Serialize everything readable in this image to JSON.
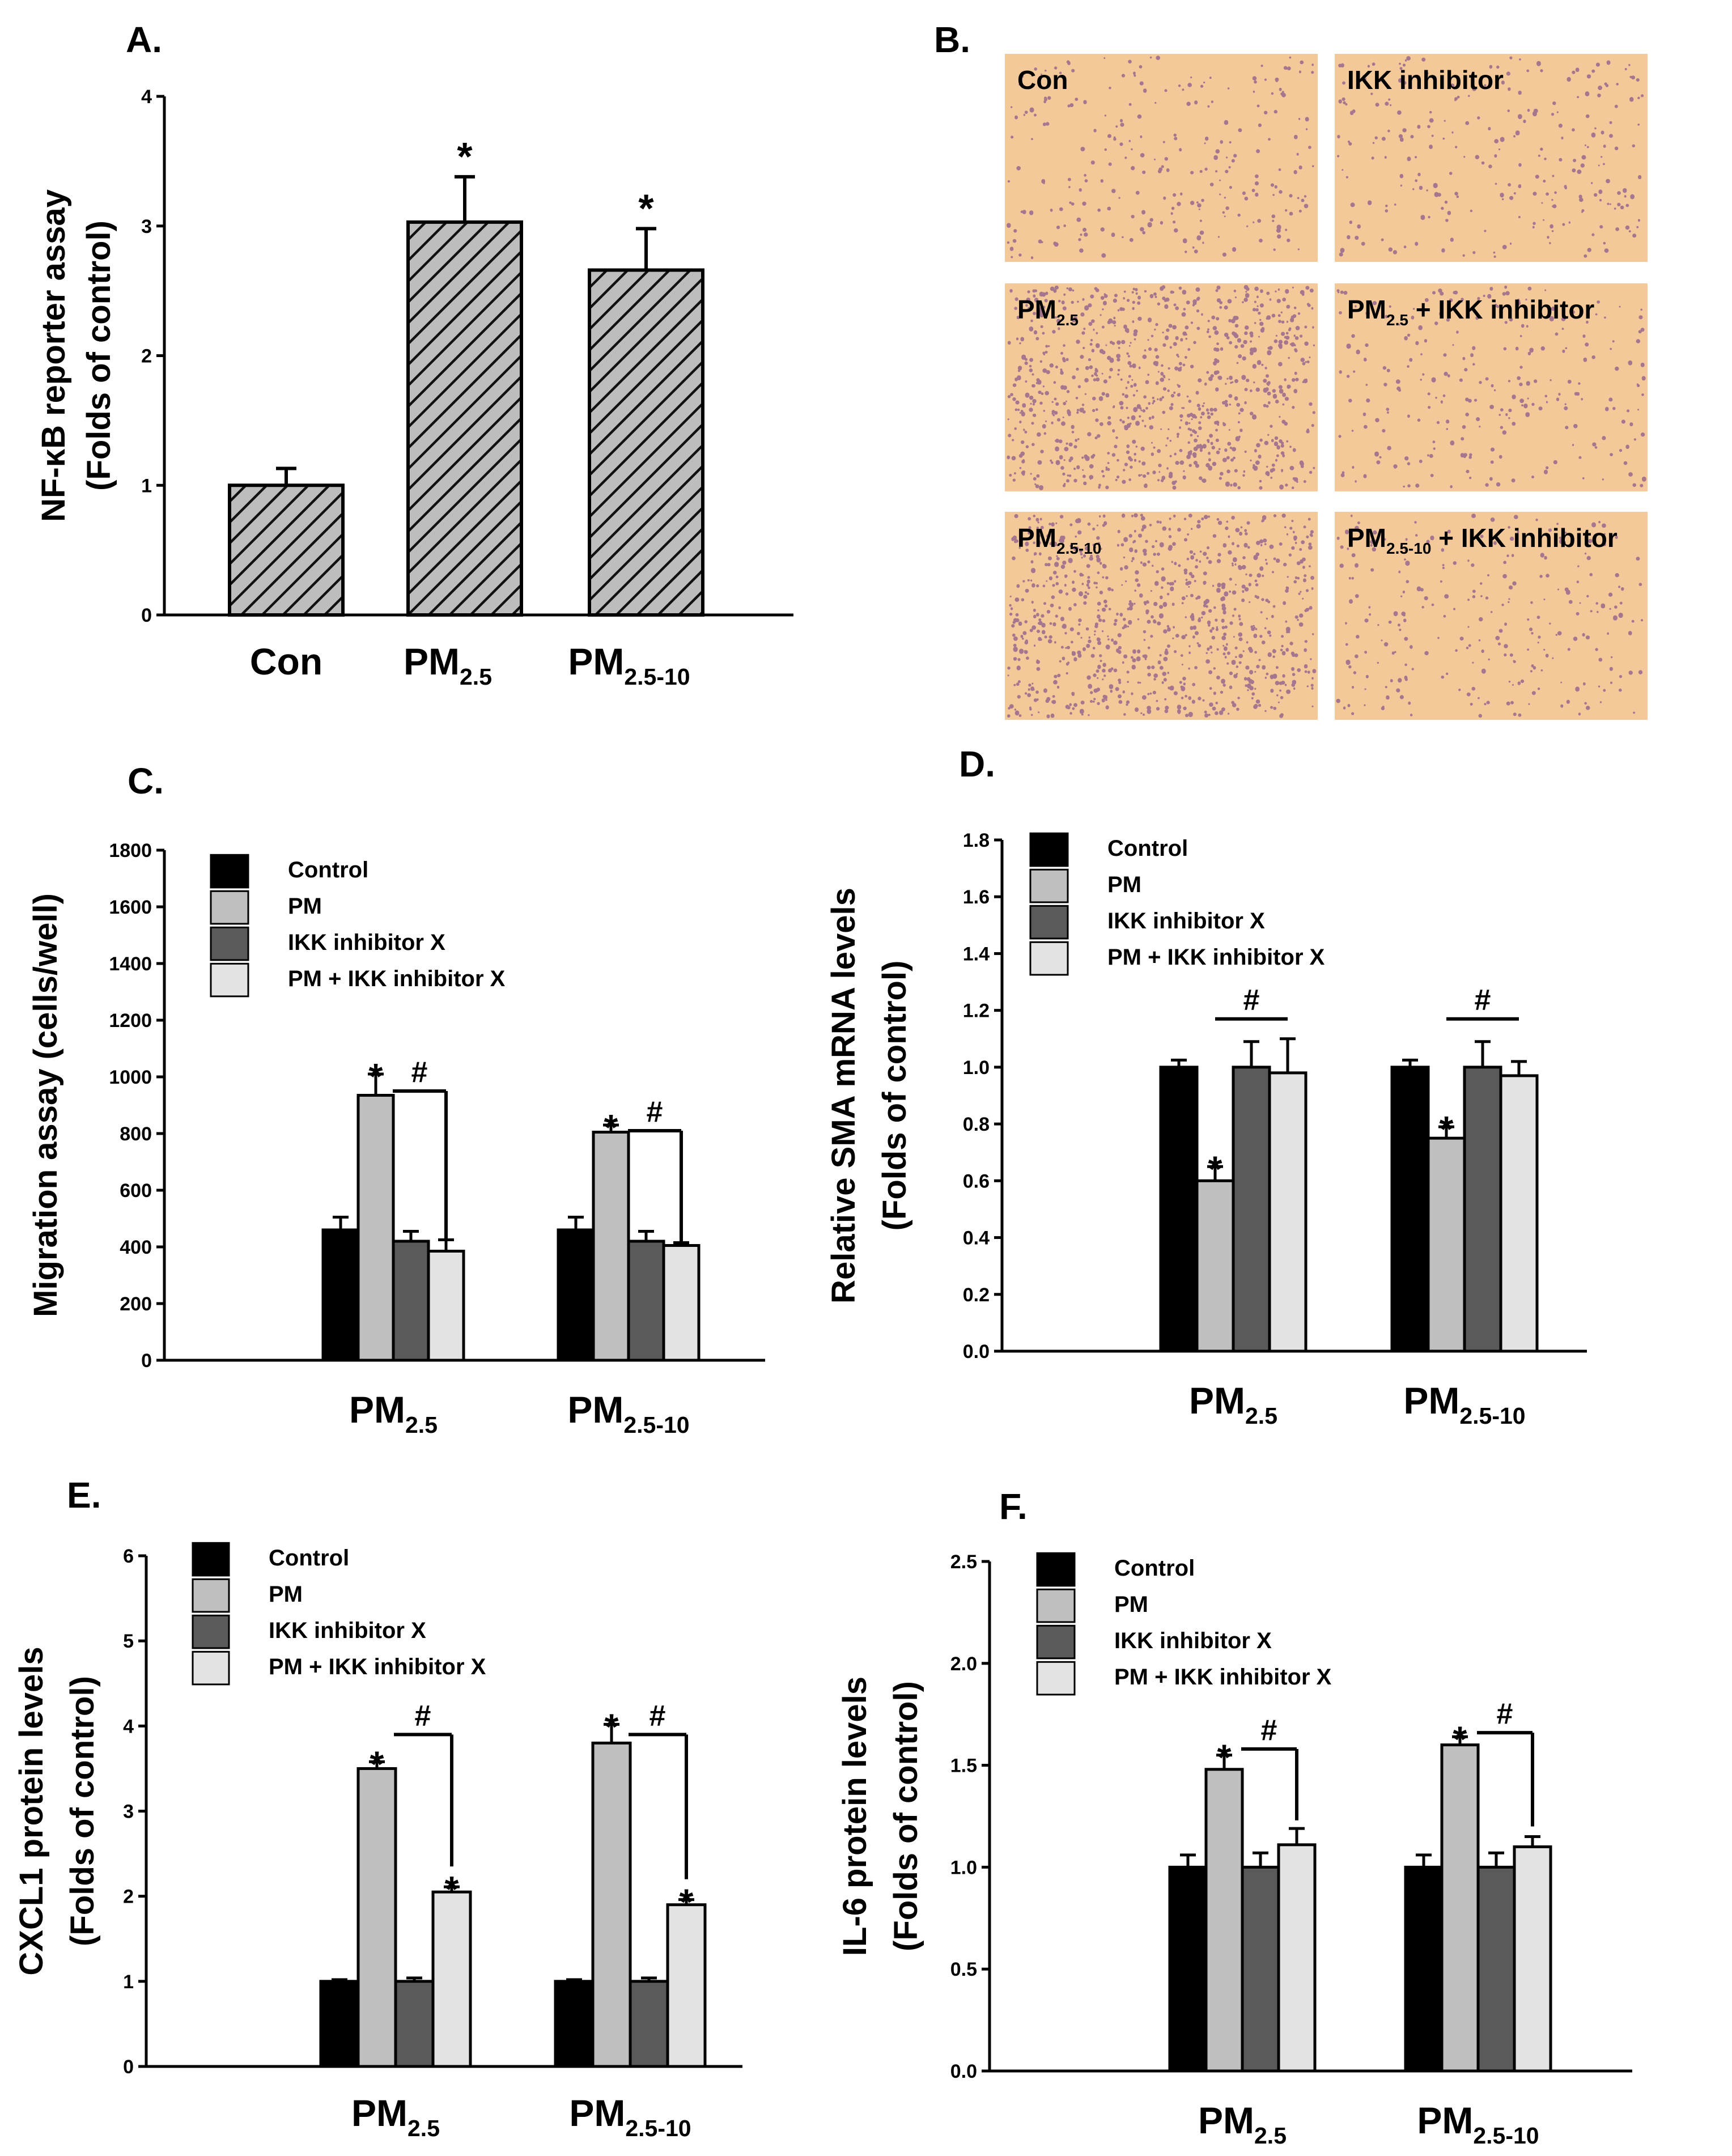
{
  "panel_labels": {
    "A": "A.",
    "B": "B.",
    "C": "C.",
    "D": "D.",
    "E": "E.",
    "F": "F."
  },
  "colors": {
    "control": "#000000",
    "pm": "#bfbfbf",
    "inhibitor": "#5a5a5a",
    "pm_inhibitor": "#e3e3e3",
    "hatch_bar": "#bdbdbd",
    "micro_bg": "#f3c99a",
    "micro_cell": "#8c5a8a"
  },
  "panel_b": {
    "images": [
      {
        "label_main": "Con",
        "label_sub": "",
        "label_tail": "",
        "density": "low"
      },
      {
        "label_main": "IKK inhibitor",
        "label_sub": "",
        "label_tail": "",
        "density": "low"
      },
      {
        "label_main": "PM",
        "label_sub": "2.5",
        "label_tail": "",
        "density": "high"
      },
      {
        "label_main": "PM",
        "label_sub": "2.5",
        "label_tail": " + IKK inhibitor",
        "density": "low"
      },
      {
        "label_main": "PM",
        "label_sub": "2.5-10",
        "label_tail": "",
        "density": "high"
      },
      {
        "label_main": "PM",
        "label_sub": "2.5-10",
        "label_tail": " + IKK inhibitor",
        "density": "low"
      }
    ]
  },
  "chart_data": [
    {
      "id": "A",
      "type": "bar",
      "ylabel_line1": "NF-κB reporter assay",
      "ylabel_line2": "(Folds of control)",
      "ylim": [
        0,
        4
      ],
      "yticks": [
        "0",
        "1",
        "2",
        "3",
        "4"
      ],
      "categories": [
        {
          "main": "Con",
          "sub": ""
        },
        {
          "main": "PM",
          "sub": "2.5"
        },
        {
          "main": "PM",
          "sub": "2.5-10"
        }
      ],
      "values": [
        1.0,
        3.03,
        2.66
      ],
      "errors": [
        0.13,
        0.35,
        0.32
      ],
      "significance": [
        "",
        "*",
        "*"
      ]
    },
    {
      "id": "C",
      "type": "bar",
      "ylabel_line1": "Migration assay (cells/well)",
      "ylabel_line2": "",
      "ylim": [
        0,
        1800
      ],
      "yticks": [
        "0",
        "200",
        "400",
        "600",
        "800",
        "1000",
        "1200",
        "1400",
        "1600",
        "1800"
      ],
      "legend": [
        "Control",
        "PM",
        "IKK inhibitor X",
        "PM + IKK inhibitor X"
      ],
      "groups": [
        {
          "main": "PM",
          "sub": "2.5"
        },
        {
          "main": "PM",
          "sub": "2.5-10"
        }
      ],
      "series": [
        {
          "name": "Control",
          "values": [
            460,
            460
          ],
          "errors": [
            45,
            45
          ]
        },
        {
          "name": "PM",
          "values": [
            935,
            805
          ],
          "errors": [
            75,
            25
          ]
        },
        {
          "name": "IKK inhibitor X",
          "values": [
            420,
            420
          ],
          "errors": [
            35,
            35
          ]
        },
        {
          "name": "PM + IKK inhibitor X",
          "values": [
            385,
            405
          ],
          "errors": [
            40,
            10
          ]
        }
      ],
      "stars": [
        [
          1,
          0
        ],
        [
          1,
          1
        ]
      ],
      "hash": "#"
    },
    {
      "id": "D",
      "type": "bar",
      "ylabel_line1": "Relative SMA mRNA levels",
      "ylabel_line2": "(Folds of control)",
      "ylim": [
        0,
        1.8
      ],
      "yticks": [
        "0.0",
        "0.2",
        "0.4",
        "0.6",
        "0.8",
        "1.0",
        "1.2",
        "1.4",
        "1.6",
        "1.8"
      ],
      "legend": [
        "Control",
        "PM",
        "IKK inhibitor X",
        "PM + IKK inhibitor X"
      ],
      "groups": [
        {
          "main": "PM",
          "sub": "2.5"
        },
        {
          "main": "PM",
          "sub": "2.5-10"
        }
      ],
      "series": [
        {
          "name": "Control",
          "values": [
            1.0,
            1.0
          ],
          "errors": [
            0.025,
            0.025
          ]
        },
        {
          "name": "PM",
          "values": [
            0.6,
            0.75
          ],
          "errors": [
            0.05,
            0.04
          ]
        },
        {
          "name": "IKK inhibitor X",
          "values": [
            1.0,
            1.0
          ],
          "errors": [
            0.09,
            0.09
          ]
        },
        {
          "name": "PM + IKK inhibitor X",
          "values": [
            0.98,
            0.97
          ],
          "errors": [
            0.12,
            0.05
          ]
        }
      ],
      "stars": [
        [
          1,
          0
        ],
        [
          1,
          1
        ]
      ],
      "hash": "#"
    },
    {
      "id": "E",
      "type": "bar",
      "ylabel_line1": "CXCL1 protein levels",
      "ylabel_line2": "(Folds of control)",
      "ylim": [
        0,
        6
      ],
      "yticks": [
        "0",
        "1",
        "2",
        "3",
        "4",
        "5",
        "6"
      ],
      "legend": [
        "Control",
        "PM",
        "IKK inhibitor X",
        "PM + IKK inhibitor X"
      ],
      "groups": [
        {
          "main": "PM",
          "sub": "2.5"
        },
        {
          "main": "PM",
          "sub": "2.5-10"
        }
      ],
      "series": [
        {
          "name": "Control",
          "values": [
            1.0,
            1.0
          ],
          "errors": [
            0.02,
            0.02
          ]
        },
        {
          "name": "PM",
          "values": [
            3.5,
            3.8
          ],
          "errors": [
            0.08,
            0.22
          ]
        },
        {
          "name": "IKK inhibitor X",
          "values": [
            1.0,
            1.0
          ],
          "errors": [
            0.04,
            0.04
          ]
        },
        {
          "name": "PM + IKK inhibitor X",
          "values": [
            2.05,
            1.9
          ],
          "errors": [
            0.06,
            0.06
          ]
        }
      ],
      "stars": [
        [
          1,
          0
        ],
        [
          1,
          1
        ],
        [
          3,
          0
        ],
        [
          3,
          1
        ]
      ],
      "hash": "#"
    },
    {
      "id": "F",
      "type": "bar",
      "ylabel_line1": "IL-6 protein levels",
      "ylabel_line2": "(Folds of control)",
      "ylim": [
        0,
        2.5
      ],
      "yticks": [
        "0.0",
        "0.5",
        "1.0",
        "1.5",
        "2.0",
        "2.5"
      ],
      "legend": [
        "Control",
        "PM",
        "IKK inhibitor X",
        "PM + IKK inhibitor X"
      ],
      "groups": [
        {
          "main": "PM",
          "sub": "2.5"
        },
        {
          "main": "PM",
          "sub": "2.5-10"
        }
      ],
      "series": [
        {
          "name": "Control",
          "values": [
            1.0,
            1.0
          ],
          "errors": [
            0.06,
            0.06
          ]
        },
        {
          "name": "PM",
          "values": [
            1.48,
            1.6
          ],
          "errors": [
            0.07,
            0.04
          ]
        },
        {
          "name": "IKK inhibitor X",
          "values": [
            1.0,
            1.0
          ],
          "errors": [
            0.07,
            0.07
          ]
        },
        {
          "name": "PM + IKK inhibitor X",
          "values": [
            1.11,
            1.1
          ],
          "errors": [
            0.08,
            0.05
          ]
        }
      ],
      "stars": [
        [
          1,
          0
        ],
        [
          1,
          1
        ]
      ],
      "hash": "#"
    }
  ]
}
